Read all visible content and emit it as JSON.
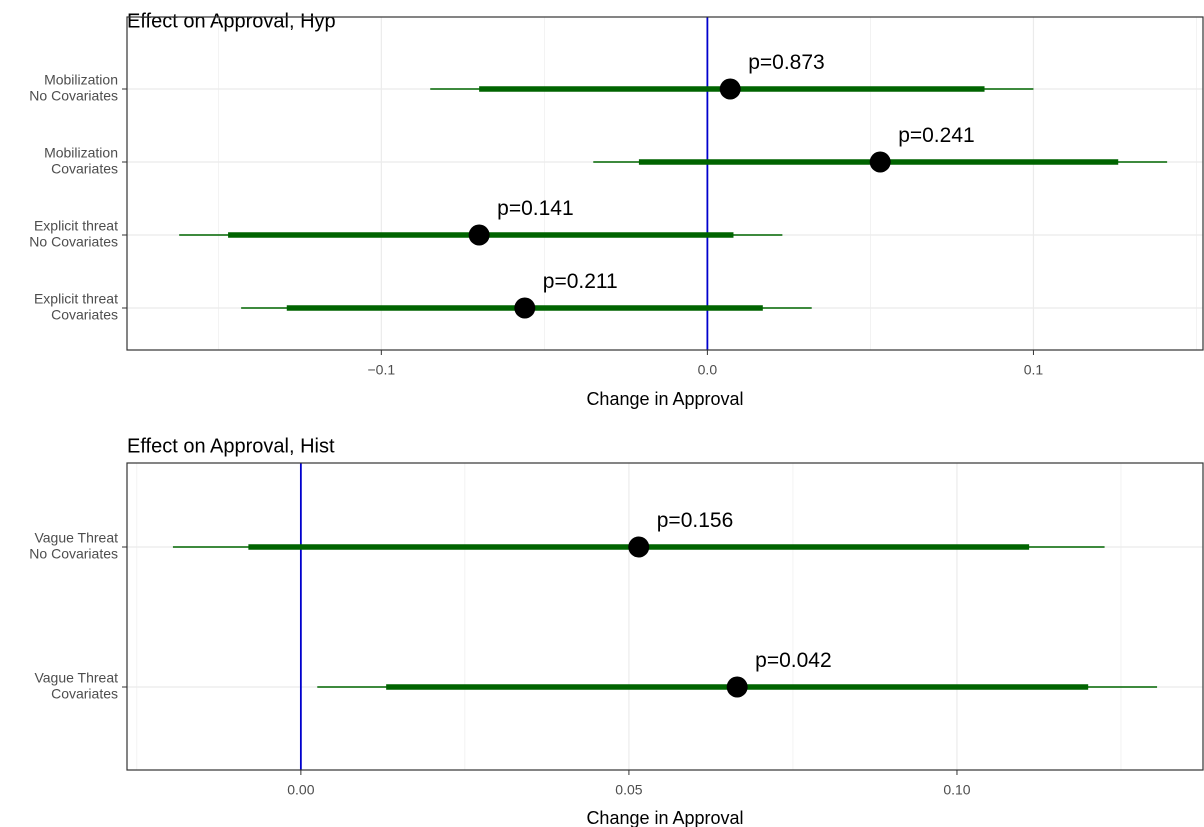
{
  "chart_data": [
    {
      "type": "forest",
      "title": "Effect on Approval, Hyp",
      "xlabel": "Change in Approval",
      "xlim": [
        -0.178,
        0.152
      ],
      "xticks": [
        -0.1,
        0.0,
        0.1
      ],
      "xtick_labels": [
        "−0.1",
        "0.0",
        "0.1"
      ],
      "reference_line": 0,
      "grid": true,
      "rows": [
        {
          "label_line1": "Mobilization",
          "label_line2": "No Covariates",
          "estimate": 0.007,
          "ci_inner": [
            -0.07,
            0.085
          ],
          "ci_outer": [
            -0.085,
            0.1
          ],
          "p_label": "p=0.873"
        },
        {
          "label_line1": "Mobilization",
          "label_line2": "Covariates",
          "estimate": 0.053,
          "ci_inner": [
            -0.021,
            0.126
          ],
          "ci_outer": [
            -0.035,
            0.141
          ],
          "p_label": "p=0.241"
        },
        {
          "label_line1": "Explicit threat",
          "label_line2": "No Covariates",
          "estimate": -0.07,
          "ci_inner": [
            -0.147,
            0.008
          ],
          "ci_outer": [
            -0.162,
            0.023
          ],
          "p_label": "p=0.141"
        },
        {
          "label_line1": "Explicit threat",
          "label_line2": "Covariates",
          "estimate": -0.056,
          "ci_inner": [
            -0.129,
            0.017
          ],
          "ci_outer": [
            -0.143,
            0.032
          ],
          "p_label": "p=0.211"
        }
      ]
    },
    {
      "type": "forest",
      "title": "Effect on Approval, Hist",
      "xlabel": "Change in Approval",
      "xlim": [
        -0.0265,
        0.1375
      ],
      "xticks": [
        0.0,
        0.05,
        0.1
      ],
      "xtick_labels": [
        "0.00",
        "0.05",
        "0.10"
      ],
      "reference_line": 0,
      "grid": true,
      "rows": [
        {
          "label_line1": "Vague Threat",
          "label_line2": "No Covariates",
          "estimate": 0.0515,
          "ci_inner": [
            -0.008,
            0.111
          ],
          "ci_outer": [
            -0.0195,
            0.1225
          ],
          "p_label": "p=0.156"
        },
        {
          "label_line1": "Vague Threat",
          "label_line2": "Covariates",
          "estimate": 0.0665,
          "ci_inner": [
            0.013,
            0.12
          ],
          "ci_outer": [
            0.0025,
            0.1305
          ],
          "p_label": "p=0.042"
        }
      ]
    }
  ],
  "colors": {
    "ci": "#006400",
    "point": "#000000",
    "reference_line": "#0000cd",
    "grid": "#ebebeb",
    "panel_border": "#333333"
  }
}
